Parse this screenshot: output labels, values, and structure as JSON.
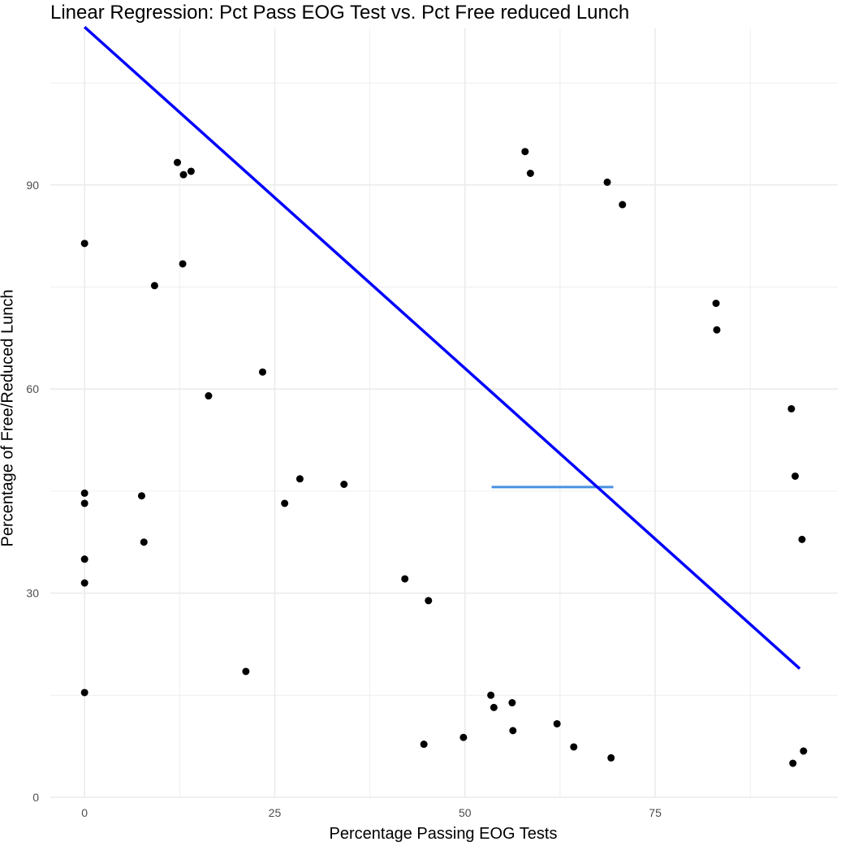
{
  "chart_data": {
    "type": "scatter",
    "title": "Linear Regression: Pct Pass EOG Test vs. Pct Free reduced Lunch",
    "xlabel": "Percentage Passing EOG Tests",
    "ylabel": "Percentage of Free/Reduced Lunch",
    "xlim": [
      -4.5,
      99
    ],
    "ylim": [
      0,
      113
    ],
    "x_ticks": [
      0,
      25,
      50,
      75
    ],
    "x_tick_labels": [
      "0",
      "25",
      "50",
      "75"
    ],
    "y_ticks": [
      0,
      30,
      60,
      90
    ],
    "y_tick_labels": [
      "0",
      "30",
      "60",
      "90"
    ],
    "grid": true,
    "legend": "none",
    "colors": {
      "points": "#000000",
      "regression_line": "#0000ff",
      "annotation_line": "#4a90e2",
      "grid": "#ebebeb",
      "tick_text": "#4d4d4d"
    },
    "regression_line": {
      "x": [
        0,
        94
      ],
      "y": [
        113.2,
        18.9
      ]
    },
    "annotation_segment": {
      "x": [
        53.5,
        69.5
      ],
      "y": [
        45.6,
        45.6
      ]
    },
    "series": [
      {
        "values": [
          [
            0,
            81.4
          ],
          [
            0,
            44.7
          ],
          [
            0,
            43.2
          ],
          [
            0,
            35.0
          ],
          [
            0,
            31.5
          ],
          [
            0,
            15.4
          ],
          [
            7.5,
            44.3
          ],
          [
            7.8,
            37.5
          ],
          [
            9.2,
            75.2
          ],
          [
            12.2,
            93.3
          ],
          [
            12.9,
            78.4
          ],
          [
            13.0,
            91.5
          ],
          [
            14.0,
            92.0
          ],
          [
            16.3,
            59.0
          ],
          [
            21.2,
            18.5
          ],
          [
            23.4,
            62.5
          ],
          [
            26.3,
            43.2
          ],
          [
            28.3,
            46.8
          ],
          [
            34.1,
            46.0
          ],
          [
            42.1,
            32.1
          ],
          [
            44.6,
            7.8
          ],
          [
            45.2,
            28.9
          ],
          [
            49.8,
            8.8
          ],
          [
            53.4,
            15.0
          ],
          [
            53.8,
            13.2
          ],
          [
            56.2,
            13.9
          ],
          [
            56.3,
            9.8
          ],
          [
            57.9,
            94.9
          ],
          [
            58.6,
            91.7
          ],
          [
            62.1,
            10.8
          ],
          [
            64.3,
            7.4
          ],
          [
            68.7,
            90.4
          ],
          [
            70.7,
            87.1
          ],
          [
            69.2,
            5.8
          ],
          [
            83.0,
            72.6
          ],
          [
            83.1,
            68.7
          ],
          [
            92.9,
            57.1
          ],
          [
            93.4,
            47.2
          ],
          [
            94.3,
            37.9
          ],
          [
            93.1,
            5.0
          ],
          [
            94.5,
            6.8
          ]
        ]
      }
    ]
  }
}
